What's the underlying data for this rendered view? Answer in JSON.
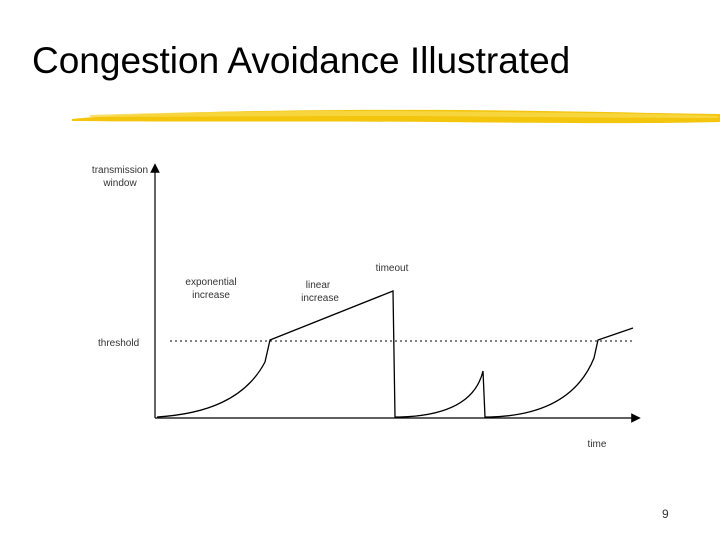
{
  "slide": {
    "title": "Congestion Avoidance Illustrated",
    "page_number": "9",
    "accent_color": "#f2c200"
  },
  "diagram": {
    "y_axis_label_line1": "transmission",
    "y_axis_label_line2": "window",
    "x_axis_label": "time",
    "threshold_label": "threshold",
    "timeout_label": "timeout",
    "exponential_label_line1": "exponential",
    "exponential_label_line2": "increase",
    "linear_label_line1": "linear",
    "linear_label_line2": "increase",
    "line_color": "#000000"
  }
}
